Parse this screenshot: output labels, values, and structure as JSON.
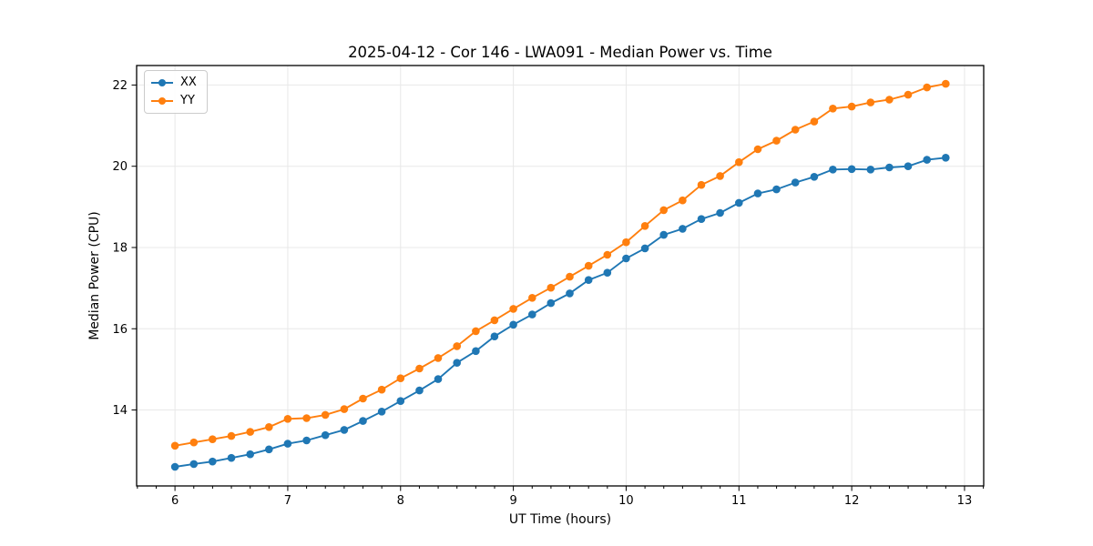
{
  "chart_data": {
    "type": "line",
    "title": "2025-04-12 - Cor 146 - LWA091 - Median Power vs. Time",
    "xlabel": "UT Time (hours)",
    "ylabel": "Median Power (CPU)",
    "xlim": [
      5.66,
      13.17
    ],
    "ylim": [
      12.13,
      22.48
    ],
    "x_major_ticks": [
      6,
      7,
      8,
      9,
      10,
      11,
      12,
      13
    ],
    "x_minor_tick_interval": 0.16667,
    "y_major_ticks": [
      14,
      16,
      18,
      20,
      22
    ],
    "grid": true,
    "grid_color": "#e8e8e8",
    "axes_edge_color": "#000000",
    "legend_position": "upper-left",
    "x": [
      6.0,
      6.167,
      6.333,
      6.5,
      6.667,
      6.833,
      7.0,
      7.167,
      7.333,
      7.5,
      7.667,
      7.833,
      8.0,
      8.167,
      8.333,
      8.5,
      8.667,
      8.833,
      9.0,
      9.167,
      9.333,
      9.5,
      9.667,
      9.833,
      10.0,
      10.167,
      10.333,
      10.5,
      10.667,
      10.833,
      11.0,
      11.167,
      11.333,
      11.5,
      11.667,
      11.833,
      12.0,
      12.167,
      12.333,
      12.5,
      12.667,
      12.833
    ],
    "series": [
      {
        "name": "XX",
        "color": "#1f77b4",
        "values": [
          12.6,
          12.67,
          12.73,
          12.82,
          12.91,
          13.03,
          13.17,
          13.25,
          13.38,
          13.51,
          13.73,
          13.96,
          14.22,
          14.48,
          14.76,
          15.16,
          15.45,
          15.81,
          16.1,
          16.35,
          16.63,
          16.87,
          17.2,
          17.38,
          17.73,
          17.98,
          18.31,
          18.46,
          18.7,
          18.85,
          19.1,
          19.33,
          19.43,
          19.6,
          19.74,
          19.92,
          19.93,
          19.92,
          19.97,
          20.0,
          20.16,
          20.21
        ]
      },
      {
        "name": "YY",
        "color": "#ff7f0e",
        "values": [
          13.12,
          13.2,
          13.28,
          13.36,
          13.46,
          13.58,
          13.78,
          13.8,
          13.88,
          14.02,
          14.28,
          14.5,
          14.78,
          15.02,
          15.28,
          15.57,
          15.94,
          16.21,
          16.49,
          16.76,
          17.01,
          17.28,
          17.55,
          17.82,
          18.13,
          18.53,
          18.92,
          19.16,
          19.54,
          19.76,
          20.1,
          20.42,
          20.63,
          20.9,
          21.1,
          21.42,
          21.47,
          21.57,
          21.64,
          21.76,
          21.94,
          22.03
        ]
      }
    ]
  }
}
